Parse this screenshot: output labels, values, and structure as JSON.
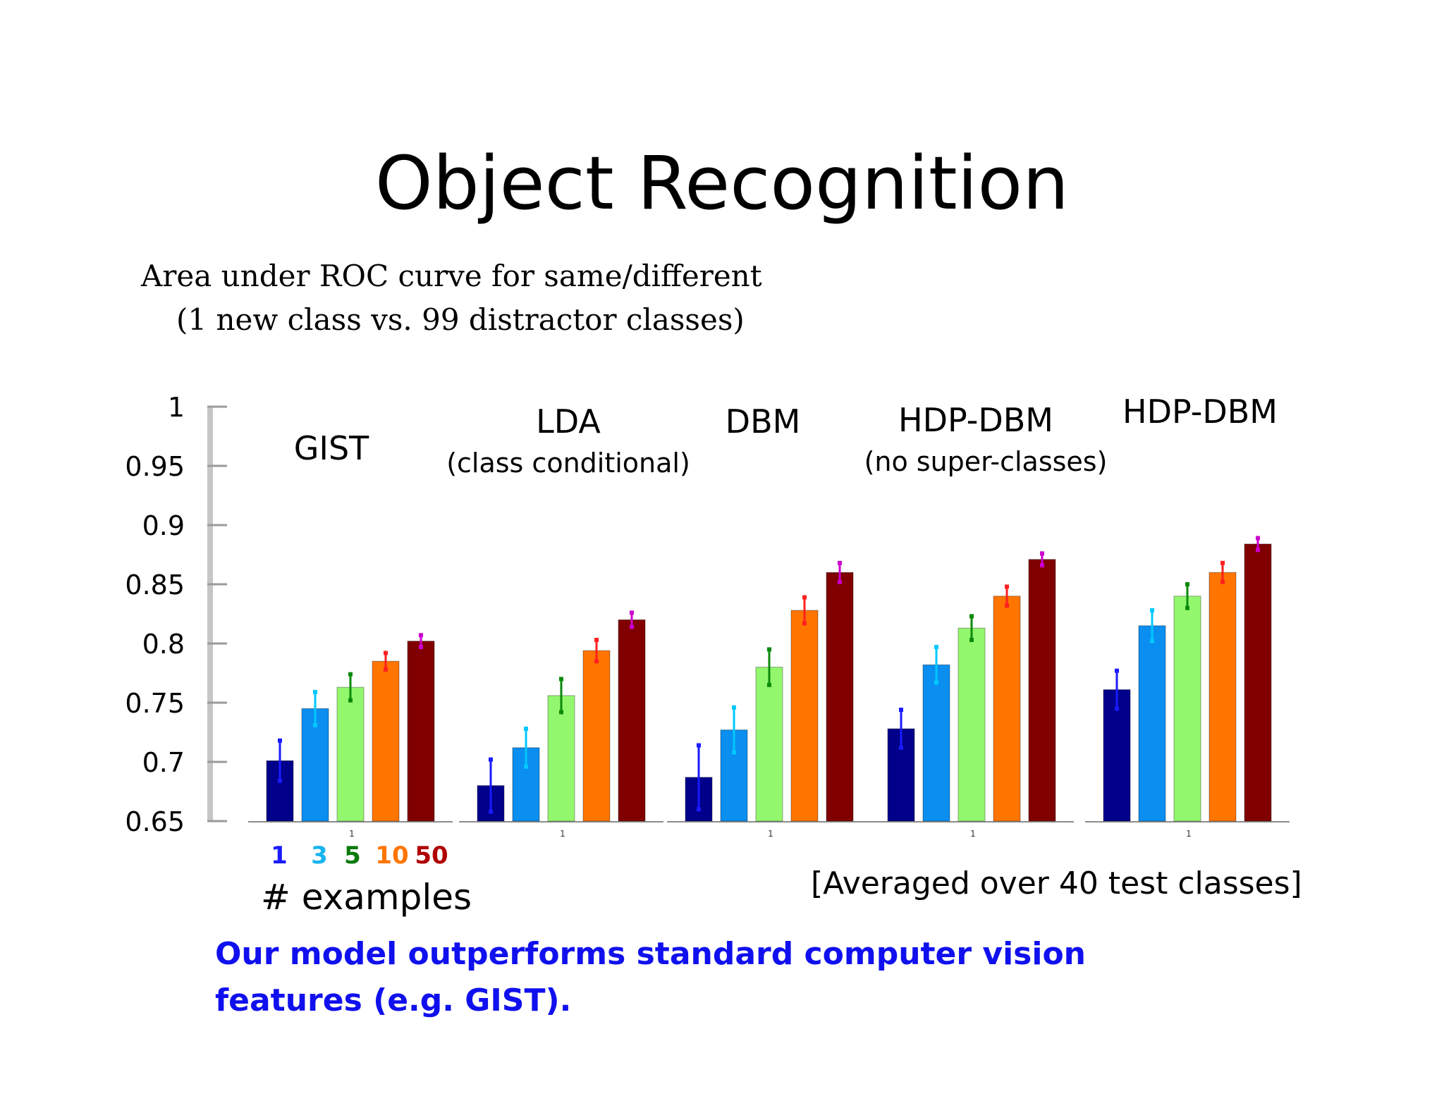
{
  "slide": {
    "title": "Object Recognition",
    "subtitle_line1": "Area under ROC curve for same/different",
    "subtitle_line2": "(1 new class vs. 99 distractor classes)",
    "footnote": "[Averaged over 40 test classes]",
    "conclusion_line1": "Our model outperforms standard computer vision",
    "conclusion_line2": "features (e.g. GIST)."
  },
  "chart_data": {
    "type": "bar",
    "ylim": [
      0.65,
      1
    ],
    "yticks": [
      "1",
      "0.95",
      "0.9",
      "0.85",
      "0.8",
      "0.75",
      "0.7",
      "0.65"
    ],
    "ytick_values": [
      1,
      0.95,
      0.9,
      0.85,
      0.8,
      0.75,
      0.7,
      0.65
    ],
    "xlabel": "# examples",
    "legend_labels": [
      "1",
      "3",
      "5",
      "10",
      "50"
    ],
    "series_colors": [
      "#00008b",
      "#0a8ef0",
      "#93f76e",
      "#ff7500",
      "#800000"
    ],
    "errorbar_colors": [
      "#1a1aff",
      "#00c8ff",
      "#0a8a0a",
      "#ff2020",
      "#cc00cc"
    ],
    "group_tick_label": "1",
    "groups": [
      {
        "name": "GIST",
        "note": "",
        "values": [
          0.701,
          0.745,
          0.763,
          0.785,
          0.802
        ],
        "errors": [
          0.017,
          0.014,
          0.011,
          0.007,
          0.005
        ]
      },
      {
        "name": "LDA",
        "note": "(class conditional)",
        "values": [
          0.68,
          0.712,
          0.756,
          0.794,
          0.82
        ],
        "errors": [
          0.022,
          0.016,
          0.014,
          0.009,
          0.006
        ]
      },
      {
        "name": "DBM",
        "note": "",
        "values": [
          0.687,
          0.727,
          0.78,
          0.828,
          0.86
        ],
        "errors": [
          0.027,
          0.019,
          0.015,
          0.011,
          0.008
        ]
      },
      {
        "name": "HDP-DBM",
        "note": "(no super-classes)",
        "values": [
          0.728,
          0.782,
          0.813,
          0.84,
          0.871
        ],
        "errors": [
          0.016,
          0.015,
          0.01,
          0.008,
          0.005
        ]
      },
      {
        "name": "HDP-DBM",
        "note": "",
        "values": [
          0.761,
          0.815,
          0.84,
          0.86,
          0.884
        ],
        "errors": [
          0.016,
          0.013,
          0.01,
          0.008,
          0.005
        ]
      }
    ]
  }
}
